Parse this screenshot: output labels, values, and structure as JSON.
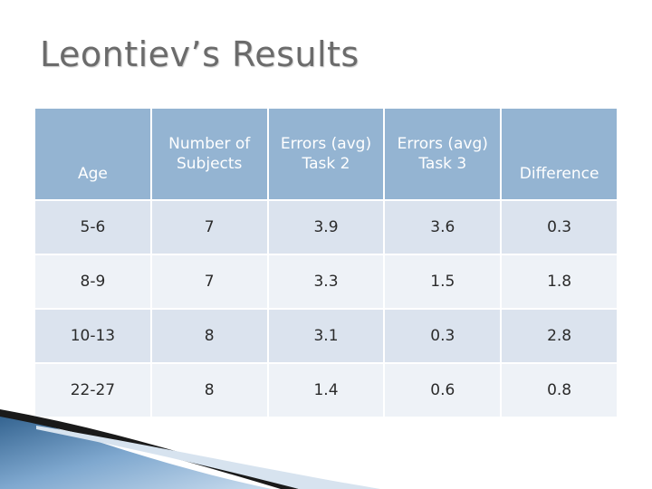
{
  "slide": {
    "title": "Leontiev’s Results"
  },
  "table": {
    "headers": [
      {
        "lines": [
          "Age"
        ]
      },
      {
        "lines": [
          "Number of",
          "Subjects"
        ]
      },
      {
        "lines": [
          "Errors (avg)",
          "Task 2"
        ]
      },
      {
        "lines": [
          "Errors (avg)",
          "Task 3"
        ]
      },
      {
        "lines": [
          "Difference"
        ]
      }
    ],
    "rows": [
      [
        "5-6",
        "7",
        "3.9",
        "3.6",
        "0.3"
      ],
      [
        "8-9",
        "7",
        "3.3",
        "1.5",
        "1.8"
      ],
      [
        "10-13",
        "8",
        "3.1",
        "0.3",
        "2.8"
      ],
      [
        "22-27",
        "8",
        "1.4",
        "0.6",
        "0.8"
      ]
    ]
  },
  "colors": {
    "header_bg": "#94b4d2",
    "row_odd_bg": "#dbe3ee",
    "row_even_bg": "#eef2f7",
    "title_color": "#6b6b6b"
  }
}
